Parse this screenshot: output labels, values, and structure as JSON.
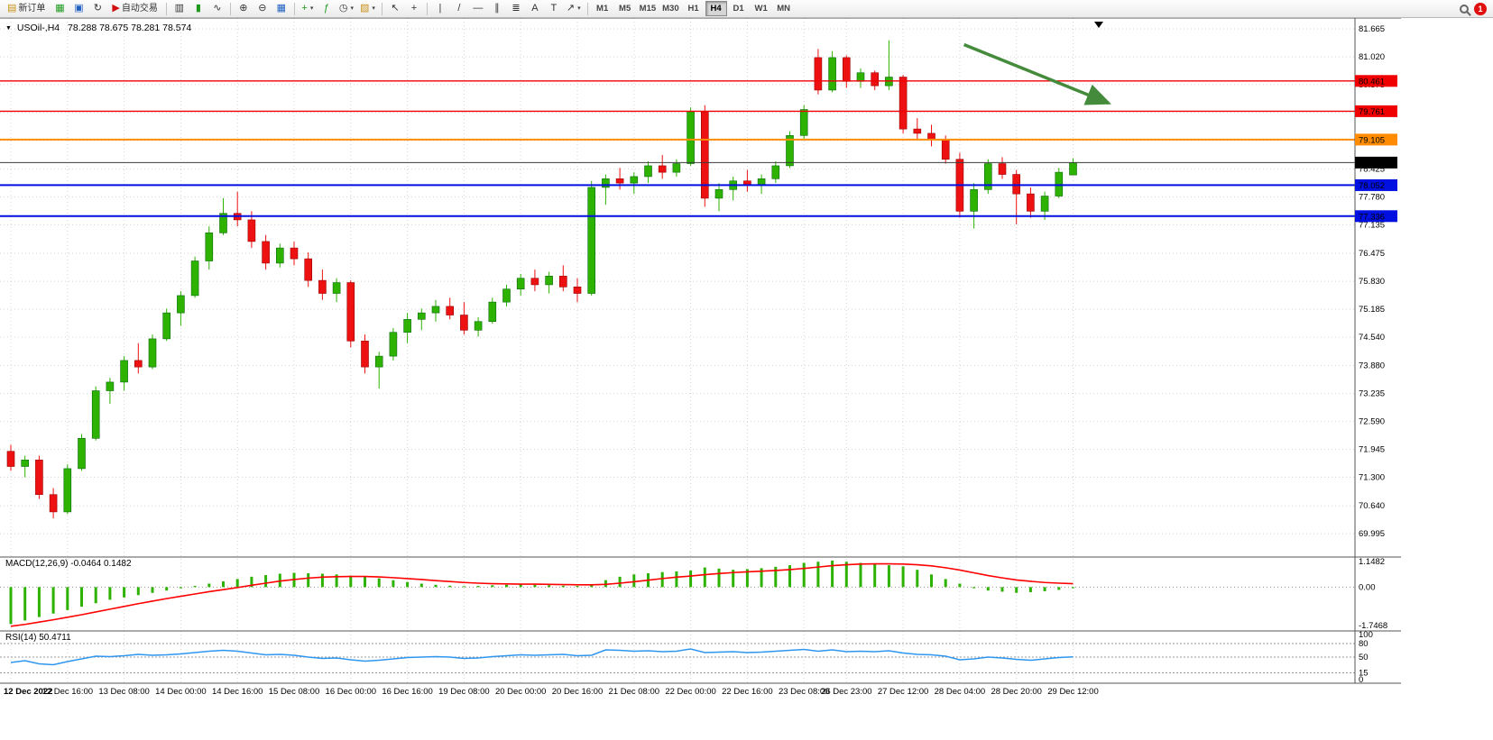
{
  "toolbar": {
    "new_order": {
      "label": "新订单"
    },
    "auto_trading": {
      "label": "自动交易"
    },
    "timeframes": {
      "labels": [
        "M1",
        "M5",
        "M15",
        "M30",
        "H1",
        "H4",
        "D1",
        "W1",
        "MN"
      ],
      "active": "H4"
    },
    "notification": {
      "count": "1"
    }
  },
  "icons": {
    "new_order": "▤",
    "market_watch": "▦",
    "data_window": "▣",
    "strategy_tester": "↻",
    "auto_trading": "▶",
    "bar_chart": "▥",
    "candlestick": "▮",
    "line_chart": "∿",
    "zoom_in": "⊕",
    "zoom_out": "⊖",
    "tile_windows": "▦",
    "new_chart": "+",
    "indicators": "ƒ",
    "periods": "◷",
    "templates": "▧",
    "cursor": "↖",
    "crosshair": "+",
    "vline": "|",
    "trendline": "/",
    "hline": "—",
    "channel": "∥",
    "fibonacci": "≣",
    "text": "A",
    "label": "T",
    "arrows": "↗",
    "dropdown": "▾",
    "collapse": "▼",
    "scroll_marker": "▼"
  },
  "chart": {
    "symbol_period": "USOil-,H4",
    "quote": "78.288 78.675 78.281 78.574"
  },
  "chart_data": {
    "type": "candlestick",
    "symbol": "USOil-",
    "period": "H4",
    "ylim": [
      69.46,
      81.915
    ],
    "ohlc": [
      [
        71.9,
        72.05,
        71.45,
        71.55
      ],
      [
        71.55,
        71.8,
        71.3,
        71.7
      ],
      [
        71.7,
        71.8,
        70.8,
        70.9
      ],
      [
        70.9,
        71.05,
        70.35,
        70.5
      ],
      [
        70.5,
        71.6,
        70.45,
        71.5
      ],
      [
        71.5,
        72.3,
        71.45,
        72.2
      ],
      [
        72.2,
        73.4,
        72.15,
        73.3
      ],
      [
        73.3,
        73.6,
        73.0,
        73.5
      ],
      [
        73.5,
        74.1,
        73.3,
        74.0
      ],
      [
        74.0,
        74.4,
        73.7,
        73.85
      ],
      [
        73.85,
        74.6,
        73.8,
        74.5
      ],
      [
        74.5,
        75.2,
        74.45,
        75.1
      ],
      [
        75.1,
        75.6,
        74.8,
        75.5
      ],
      [
        75.5,
        76.4,
        75.45,
        76.3
      ],
      [
        76.3,
        77.1,
        76.1,
        76.95
      ],
      [
        76.95,
        77.75,
        76.9,
        77.4
      ],
      [
        77.4,
        77.9,
        77.1,
        77.25
      ],
      [
        77.25,
        77.45,
        76.6,
        76.75
      ],
      [
        76.75,
        76.9,
        76.1,
        76.25
      ],
      [
        76.25,
        76.7,
        76.15,
        76.6
      ],
      [
        76.6,
        76.75,
        76.2,
        76.35
      ],
      [
        76.35,
        76.5,
        75.7,
        75.85
      ],
      [
        75.85,
        76.1,
        75.4,
        75.55
      ],
      [
        75.55,
        75.9,
        75.35,
        75.8
      ],
      [
        75.8,
        75.85,
        74.3,
        74.45
      ],
      [
        74.45,
        74.6,
        73.7,
        73.85
      ],
      [
        73.85,
        74.2,
        73.35,
        74.1
      ],
      [
        74.1,
        74.75,
        74.0,
        74.65
      ],
      [
        74.65,
        75.1,
        74.4,
        74.95
      ],
      [
        74.95,
        75.2,
        74.7,
        75.1
      ],
      [
        75.1,
        75.4,
        74.9,
        75.25
      ],
      [
        75.25,
        75.45,
        74.95,
        75.05
      ],
      [
        75.05,
        75.35,
        74.6,
        74.7
      ],
      [
        74.7,
        75.0,
        74.55,
        74.9
      ],
      [
        74.9,
        75.45,
        74.85,
        75.35
      ],
      [
        75.35,
        75.75,
        75.25,
        75.65
      ],
      [
        75.65,
        76.0,
        75.5,
        75.9
      ],
      [
        75.9,
        76.1,
        75.6,
        75.75
      ],
      [
        75.75,
        76.05,
        75.55,
        75.95
      ],
      [
        75.95,
        76.2,
        75.6,
        75.7
      ],
      [
        75.7,
        75.9,
        75.35,
        75.55
      ],
      [
        75.55,
        78.15,
        75.5,
        78.0
      ],
      [
        78.0,
        78.3,
        77.6,
        78.2
      ],
      [
        78.2,
        78.45,
        77.95,
        78.1
      ],
      [
        78.1,
        78.35,
        77.85,
        78.25
      ],
      [
        78.25,
        78.6,
        78.1,
        78.5
      ],
      [
        78.5,
        78.75,
        78.2,
        78.35
      ],
      [
        78.35,
        78.65,
        78.25,
        78.55
      ],
      [
        78.55,
        79.85,
        78.5,
        79.75
      ],
      [
        79.75,
        79.9,
        77.55,
        77.75
      ],
      [
        77.75,
        78.1,
        77.45,
        77.95
      ],
      [
        77.95,
        78.25,
        77.7,
        78.15
      ],
      [
        78.15,
        78.4,
        77.9,
        78.05
      ],
      [
        78.05,
        78.3,
        77.85,
        78.2
      ],
      [
        78.2,
        78.6,
        78.1,
        78.5
      ],
      [
        78.5,
        79.3,
        78.45,
        79.2
      ],
      [
        79.2,
        79.9,
        79.1,
        79.8
      ],
      [
        81.0,
        81.2,
        80.15,
        80.25
      ],
      [
        80.25,
        81.15,
        80.2,
        81.0
      ],
      [
        81.0,
        81.05,
        80.3,
        80.45
      ],
      [
        80.45,
        80.75,
        80.3,
        80.65
      ],
      [
        80.65,
        80.7,
        80.25,
        80.35
      ],
      [
        80.35,
        81.4,
        80.25,
        80.55
      ],
      [
        80.55,
        80.6,
        79.25,
        79.35
      ],
      [
        79.35,
        79.6,
        79.1,
        79.25
      ],
      [
        79.25,
        79.45,
        78.95,
        79.1
      ],
      [
        79.1,
        79.2,
        78.55,
        78.65
      ],
      [
        78.65,
        78.8,
        77.3,
        77.45
      ],
      [
        77.45,
        78.1,
        77.05,
        77.95
      ],
      [
        77.95,
        78.65,
        77.85,
        78.55
      ],
      [
        78.55,
        78.7,
        78.2,
        78.3
      ],
      [
        78.3,
        78.4,
        77.15,
        77.85
      ],
      [
        77.85,
        78.0,
        77.3,
        77.45
      ],
      [
        77.45,
        77.9,
        77.25,
        77.8
      ],
      [
        77.8,
        78.45,
        77.75,
        78.35
      ],
      [
        78.288,
        78.675,
        78.281,
        78.574
      ]
    ],
    "time_labels": [
      {
        "label": "12 Dec 2022",
        "index": 0
      },
      {
        "label": "12 Dec 16:00",
        "index": 4
      },
      {
        "label": "13 Dec 08:00",
        "index": 8
      },
      {
        "label": "14 Dec 00:00",
        "index": 12
      },
      {
        "label": "14 Dec 16:00",
        "index": 16
      },
      {
        "label": "15 Dec 08:00",
        "index": 20
      },
      {
        "label": "16 Dec 00:00",
        "index": 24
      },
      {
        "label": "16 Dec 16:00",
        "index": 28
      },
      {
        "label": "19 Dec 08:00",
        "index": 32
      },
      {
        "label": "20 Dec 00:00",
        "index": 36
      },
      {
        "label": "20 Dec 16:00",
        "index": 40
      },
      {
        "label": "21 Dec 08:00",
        "index": 44
      },
      {
        "label": "22 Dec 00:00",
        "index": 48
      },
      {
        "label": "22 Dec 16:00",
        "index": 52
      },
      {
        "label": "23 Dec 08:00",
        "index": 56
      },
      {
        "label": "26 Dec 23:00",
        "index": 59
      },
      {
        "label": "27 Dec 12:00",
        "index": 63
      },
      {
        "label": "28 Dec 04:00",
        "index": 67
      },
      {
        "label": "28 Dec 20:00",
        "index": 71
      },
      {
        "label": "29 Dec 12:00",
        "index": 75
      }
    ],
    "price_axis_labels": [
      "81.665",
      "81.020",
      "80.375",
      "79.730",
      "79.085",
      "78.425",
      "77.780",
      "77.135",
      "76.475",
      "75.830",
      "75.185",
      "74.540",
      "73.880",
      "73.235",
      "72.590",
      "71.945",
      "71.300",
      "70.640",
      "69.995"
    ],
    "levels": [
      {
        "value": 80.461,
        "label": "80.461",
        "color": "#f00000",
        "width": 1.4
      },
      {
        "value": 79.761,
        "label": "79.761",
        "color": "#f00000",
        "width": 1.4
      },
      {
        "value": 79.105,
        "label": "79.105",
        "color": "#ff8c00",
        "width": 2
      },
      {
        "value": 78.052,
        "label": "78.052",
        "color": "#0010e0",
        "width": 2
      },
      {
        "value": 77.336,
        "label": "77.336",
        "color": "#0010e0",
        "width": 2
      }
    ],
    "bid": {
      "value": 78.574,
      "label": "78.574",
      "color": "#3a3a3a",
      "badge": "#000000"
    },
    "arrow": {
      "from": {
        "index": 67.3,
        "price": 81.3
      },
      "to": {
        "index": 77.5,
        "price": 79.95
      },
      "color": "#458b3c"
    },
    "macd": {
      "label": "MACD(12,26,9)",
      "main_value": "-0.0464",
      "signal_value": "0.1482",
      "ylim": [
        -1.7468,
        1.1482
      ],
      "scale_labels": [
        "1.1482",
        "0.00",
        "-1.7468"
      ],
      "histogram": [
        -1.6,
        -1.45,
        -1.3,
        -1.15,
        -1.0,
        -0.85,
        -0.7,
        -0.55,
        -0.45,
        -0.35,
        -0.25,
        -0.15,
        -0.05,
        0.05,
        0.15,
        0.25,
        0.35,
        0.45,
        0.52,
        0.58,
        0.62,
        0.6,
        0.58,
        0.55,
        0.5,
        0.45,
        0.38,
        0.3,
        0.22,
        0.15,
        0.1,
        0.06,
        0.04,
        0.05,
        0.08,
        0.1,
        0.12,
        0.1,
        0.08,
        0.06,
        0.05,
        0.08,
        0.3,
        0.45,
        0.55,
        0.6,
        0.65,
        0.68,
        0.72,
        0.85,
        0.8,
        0.75,
        0.78,
        0.82,
        0.88,
        0.95,
        1.05,
        1.1,
        1.15,
        1.1,
        1.05,
        1.0,
        0.95,
        0.9,
        0.75,
        0.55,
        0.35,
        0.15,
        -0.05,
        -0.15,
        -0.2,
        -0.25,
        -0.22,
        -0.18,
        -0.12,
        -0.046
      ],
      "signal": [
        -1.7,
        -1.62,
        -1.52,
        -1.42,
        -1.31,
        -1.2,
        -1.08,
        -0.96,
        -0.84,
        -0.72,
        -0.61,
        -0.5,
        -0.4,
        -0.3,
        -0.2,
        -0.11,
        -0.02,
        0.08,
        0.17,
        0.26,
        0.33,
        0.39,
        0.43,
        0.45,
        0.46,
        0.46,
        0.44,
        0.41,
        0.37,
        0.33,
        0.28,
        0.24,
        0.2,
        0.17,
        0.15,
        0.14,
        0.13,
        0.13,
        0.12,
        0.11,
        0.1,
        0.1,
        0.12,
        0.17,
        0.23,
        0.3,
        0.37,
        0.43,
        0.48,
        0.54,
        0.59,
        0.63,
        0.66,
        0.69,
        0.72,
        0.76,
        0.81,
        0.87,
        0.93,
        0.97,
        1.0,
        1.01,
        1.01,
        1.0,
        0.97,
        0.92,
        0.84,
        0.74,
        0.62,
        0.5,
        0.4,
        0.31,
        0.25,
        0.2,
        0.17,
        0.15
      ]
    },
    "rsi": {
      "label": "RSI(14)",
      "value": "50.4711",
      "ylim": [
        0,
        100
      ],
      "levels": [
        80,
        50,
        15
      ],
      "scale_labels": [
        "100",
        "80",
        "50",
        "15",
        "0"
      ],
      "values": [
        38,
        42,
        35,
        33,
        40,
        46,
        52,
        51,
        53,
        56,
        54,
        55,
        57,
        60,
        63,
        65,
        63,
        59,
        55,
        56,
        54,
        50,
        47,
        48,
        44,
        41,
        43,
        46,
        49,
        50,
        51,
        50,
        47,
        48,
        51,
        53,
        55,
        54,
        55,
        56,
        53,
        54,
        66,
        65,
        63,
        64,
        62,
        63,
        68,
        60,
        61,
        62,
        60,
        61,
        63,
        65,
        67,
        63,
        66,
        62,
        63,
        62,
        64,
        59,
        56,
        55,
        52,
        44,
        46,
        50,
        48,
        45,
        43,
        46,
        49,
        50.47
      ]
    },
    "colors": {
      "up": "#2db200",
      "up_border": "#0c6b0c",
      "down": "#ee1111",
      "down_border": "#990000",
      "macd_hist": "#2db200",
      "macd_signal": "#ff0000",
      "rsi_line": "#2f96f0",
      "grid": "#d4d4d4",
      "level_dots": "#9a9a9a"
    }
  }
}
